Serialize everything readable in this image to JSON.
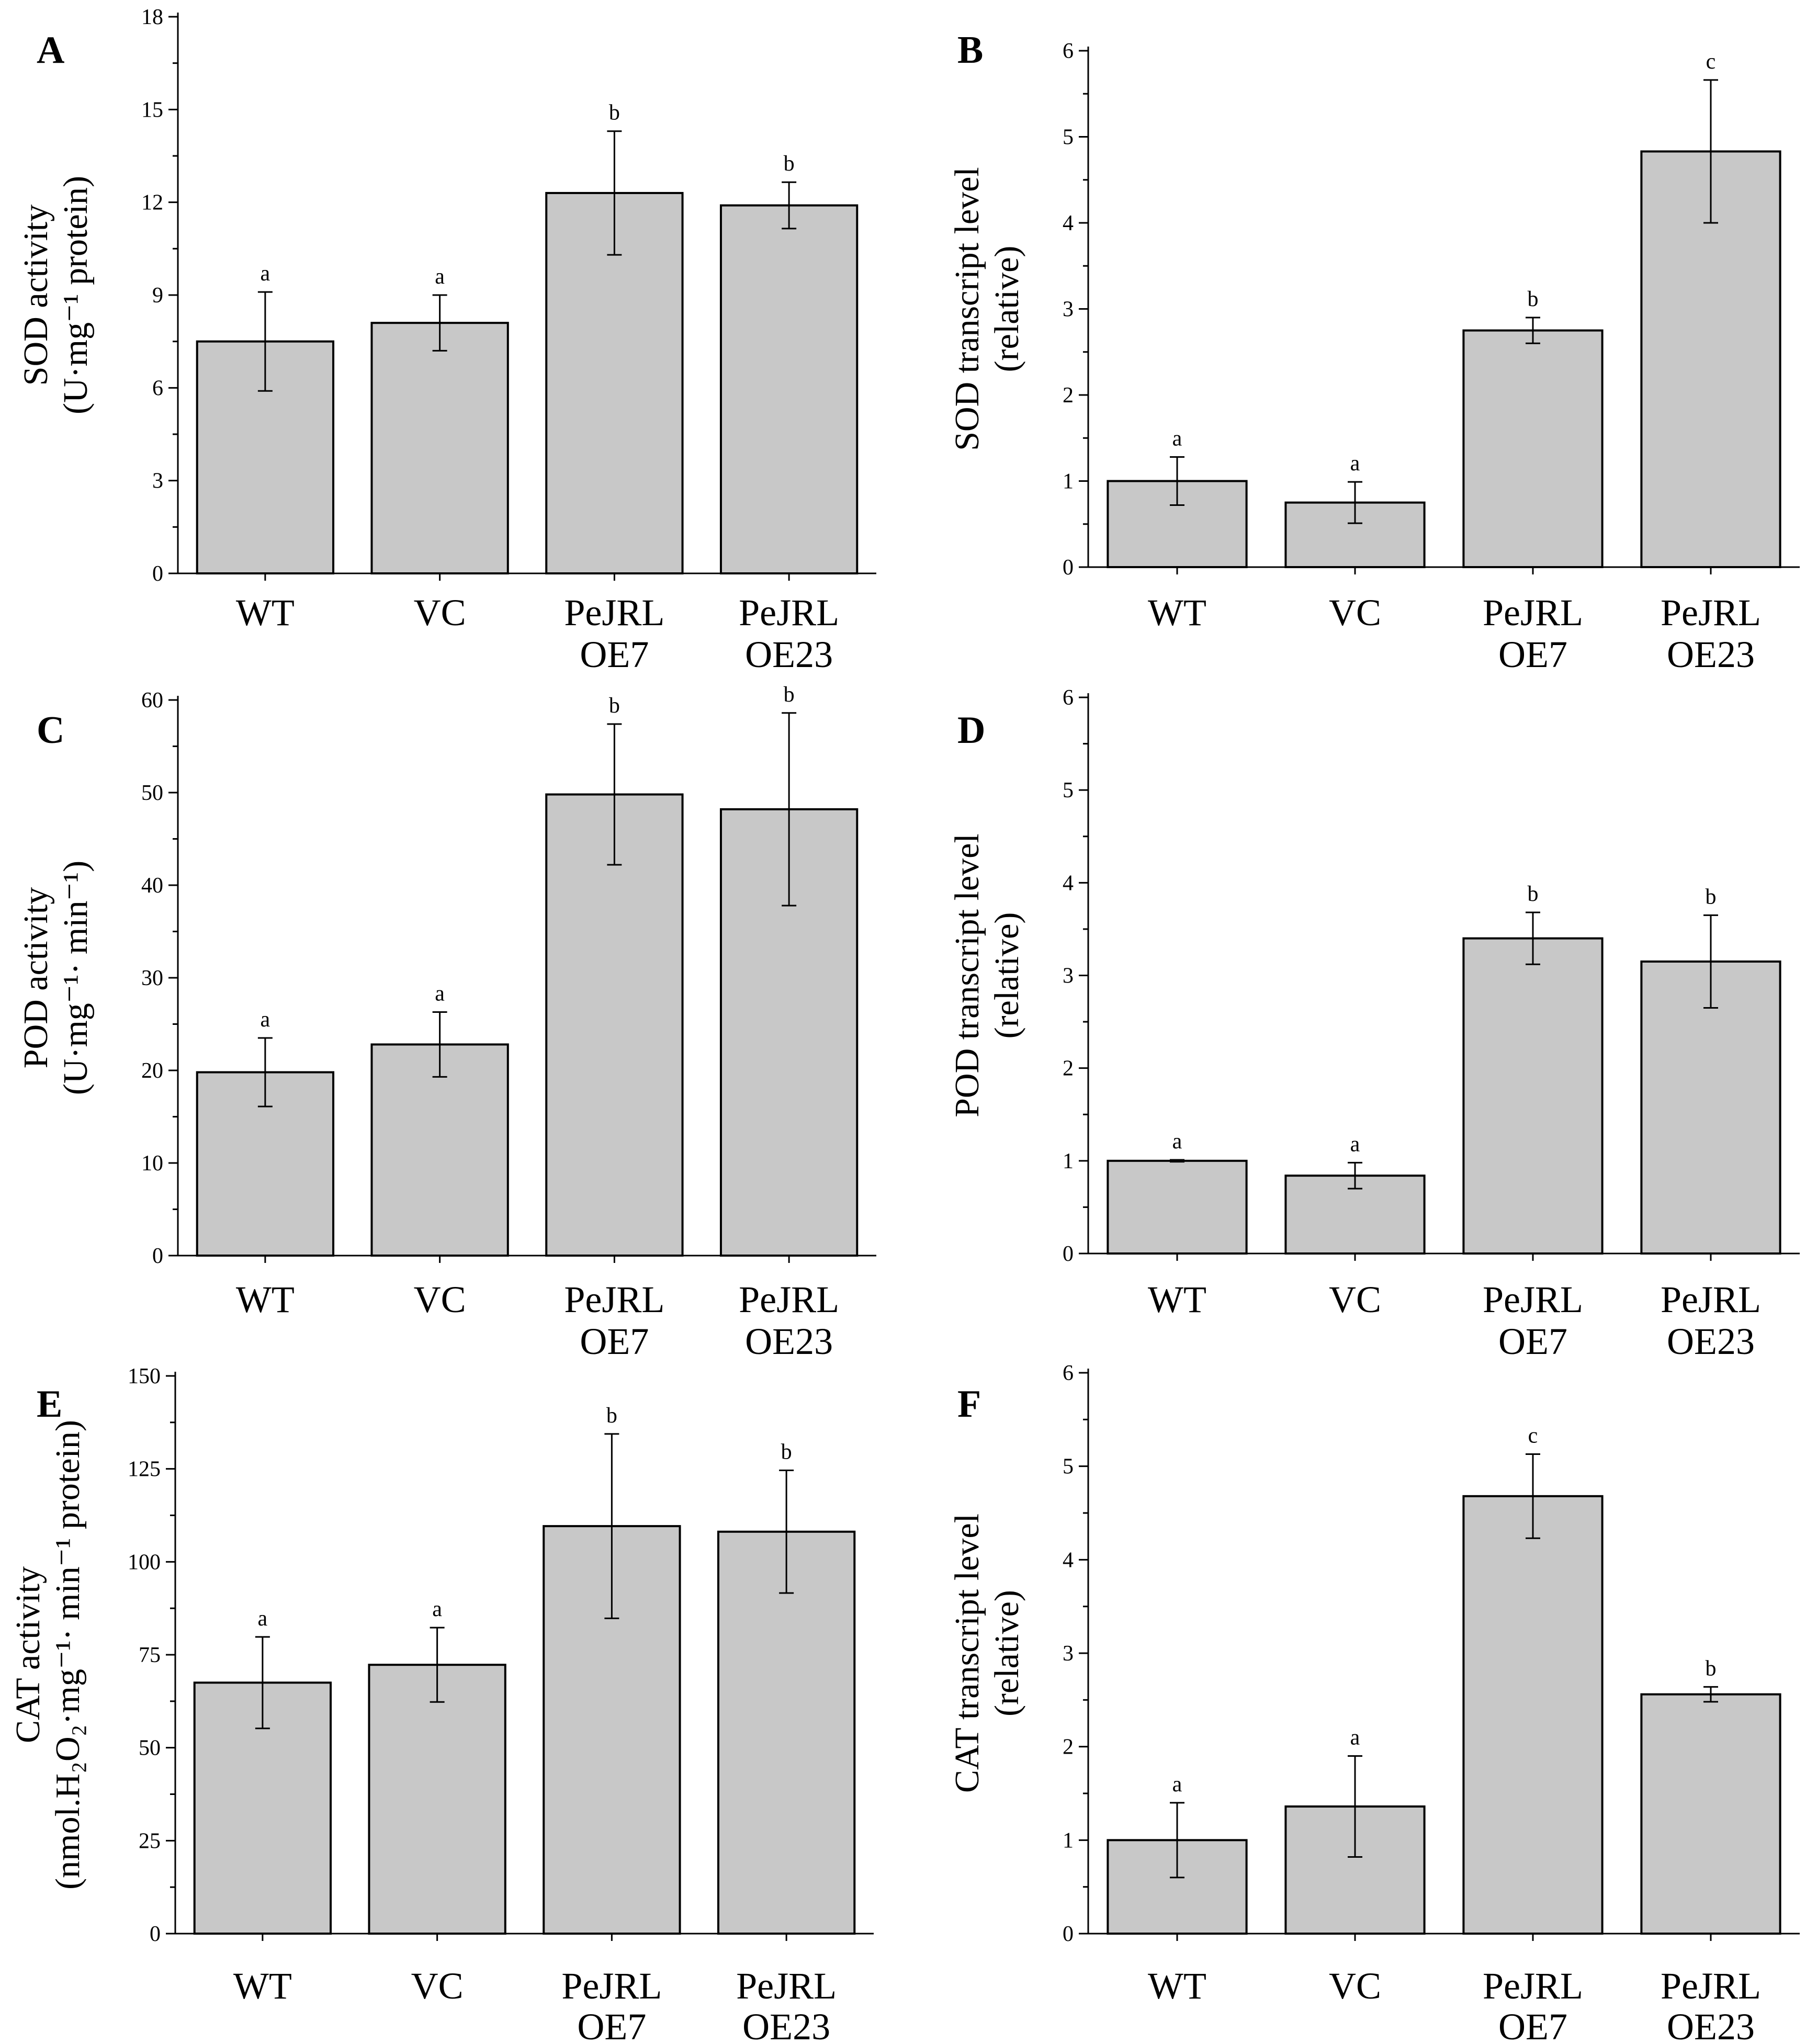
{
  "chart_data": [
    {
      "panel": "A",
      "type": "bar",
      "categories": [
        [
          "WT"
        ],
        [
          "VC"
        ],
        [
          "PeJRL",
          "OE7"
        ],
        [
          "PeJRL",
          "OE23"
        ]
      ],
      "values": [
        7.5,
        8.1,
        12.3,
        11.9
      ],
      "errors": [
        1.6,
        0.9,
        2.0,
        0.75
      ],
      "letters": [
        "a",
        "a",
        "b",
        "b"
      ],
      "ylabel_lines": [
        "SOD activity",
        "(U·mg⁻¹ protein)"
      ],
      "ylim": [
        0,
        18
      ],
      "yticks": [
        "0",
        "3",
        "6",
        "9",
        "12",
        "15",
        "18"
      ],
      "minor_ticks": true
    },
    {
      "panel": "B",
      "type": "bar",
      "categories": [
        [
          "WT"
        ],
        [
          "VC"
        ],
        [
          "PeJRL",
          "OE7"
        ],
        [
          "PeJRL",
          "OE23"
        ]
      ],
      "values": [
        1.0,
        0.75,
        2.75,
        4.83
      ],
      "errors": [
        0.28,
        0.24,
        0.15,
        0.83
      ],
      "letters": [
        "a",
        "a",
        "b",
        "c"
      ],
      "ylabel_lines": [
        "SOD transcript level",
        "(relative)"
      ],
      "ylim": [
        0,
        6
      ],
      "yticks": [
        "0",
        "1",
        "2",
        "3",
        "4",
        "5",
        "6"
      ],
      "minor_ticks": true
    },
    {
      "panel": "C",
      "type": "bar",
      "categories": [
        [
          "WT"
        ],
        [
          "VC"
        ],
        [
          "PeJRL",
          "OE7"
        ],
        [
          "PeJRL",
          "OE23"
        ]
      ],
      "values": [
        19.8,
        22.8,
        49.8,
        48.2
      ],
      "errors": [
        3.7,
        3.5,
        7.6,
        10.4
      ],
      "letters": [
        "a",
        "a",
        "b",
        "b"
      ],
      "ylabel_lines": [
        "POD activity",
        "(U·mg⁻¹· min⁻¹)"
      ],
      "ylim": [
        0,
        60
      ],
      "yticks": [
        "0",
        "10",
        "20",
        "30",
        "40",
        "50",
        "60"
      ],
      "minor_ticks": true
    },
    {
      "panel": "D",
      "type": "bar",
      "categories": [
        [
          "WT"
        ],
        [
          "VC"
        ],
        [
          "PeJRL",
          "OE7"
        ],
        [
          "PeJRL",
          "OE23"
        ]
      ],
      "values": [
        1.0,
        0.84,
        3.4,
        3.15
      ],
      "errors": [
        0.01,
        0.14,
        0.28,
        0.5
      ],
      "letters": [
        "a",
        "a",
        "b",
        "b"
      ],
      "ylabel_lines": [
        "POD transcript level",
        "(relative)"
      ],
      "ylim": [
        0,
        6
      ],
      "yticks": [
        "0",
        "1",
        "2",
        "3",
        "4",
        "5",
        "6"
      ],
      "minor_ticks": true
    },
    {
      "panel": "E",
      "type": "bar",
      "categories": [
        [
          "WT"
        ],
        [
          "VC"
        ],
        [
          "PeJRL",
          "OE7"
        ],
        [
          "PeJRL",
          "OE23"
        ]
      ],
      "values": [
        67.5,
        72.3,
        109.6,
        108.1
      ],
      "errors": [
        12.3,
        10.0,
        24.8,
        16.5
      ],
      "letters": [
        "a",
        "a",
        "b",
        "b"
      ],
      "ylabel_lines": [
        "CAT activity",
        "(nmol.H₂O₂·mg⁻¹· min⁻¹ protein)"
      ],
      "ylim": [
        0,
        150
      ],
      "yticks": [
        "0",
        "25",
        "50",
        "75",
        "100",
        "125",
        "150"
      ],
      "minor_ticks": true
    },
    {
      "panel": "F",
      "type": "bar",
      "categories": [
        [
          "WT"
        ],
        [
          "VC"
        ],
        [
          "PeJRL",
          "OE7"
        ],
        [
          "PeJRL",
          "OE23"
        ]
      ],
      "values": [
        1.0,
        1.36,
        4.68,
        2.56
      ],
      "errors": [
        0.4,
        0.54,
        0.45,
        0.08
      ],
      "letters": [
        "a",
        "a",
        "c",
        "b"
      ],
      "ylabel_lines": [
        "CAT transcript level",
        "(relative)"
      ],
      "ylim": [
        0,
        6
      ],
      "yticks": [
        "0",
        "1",
        "2",
        "3",
        "4",
        "5",
        "6"
      ],
      "minor_ticks": true
    }
  ]
}
